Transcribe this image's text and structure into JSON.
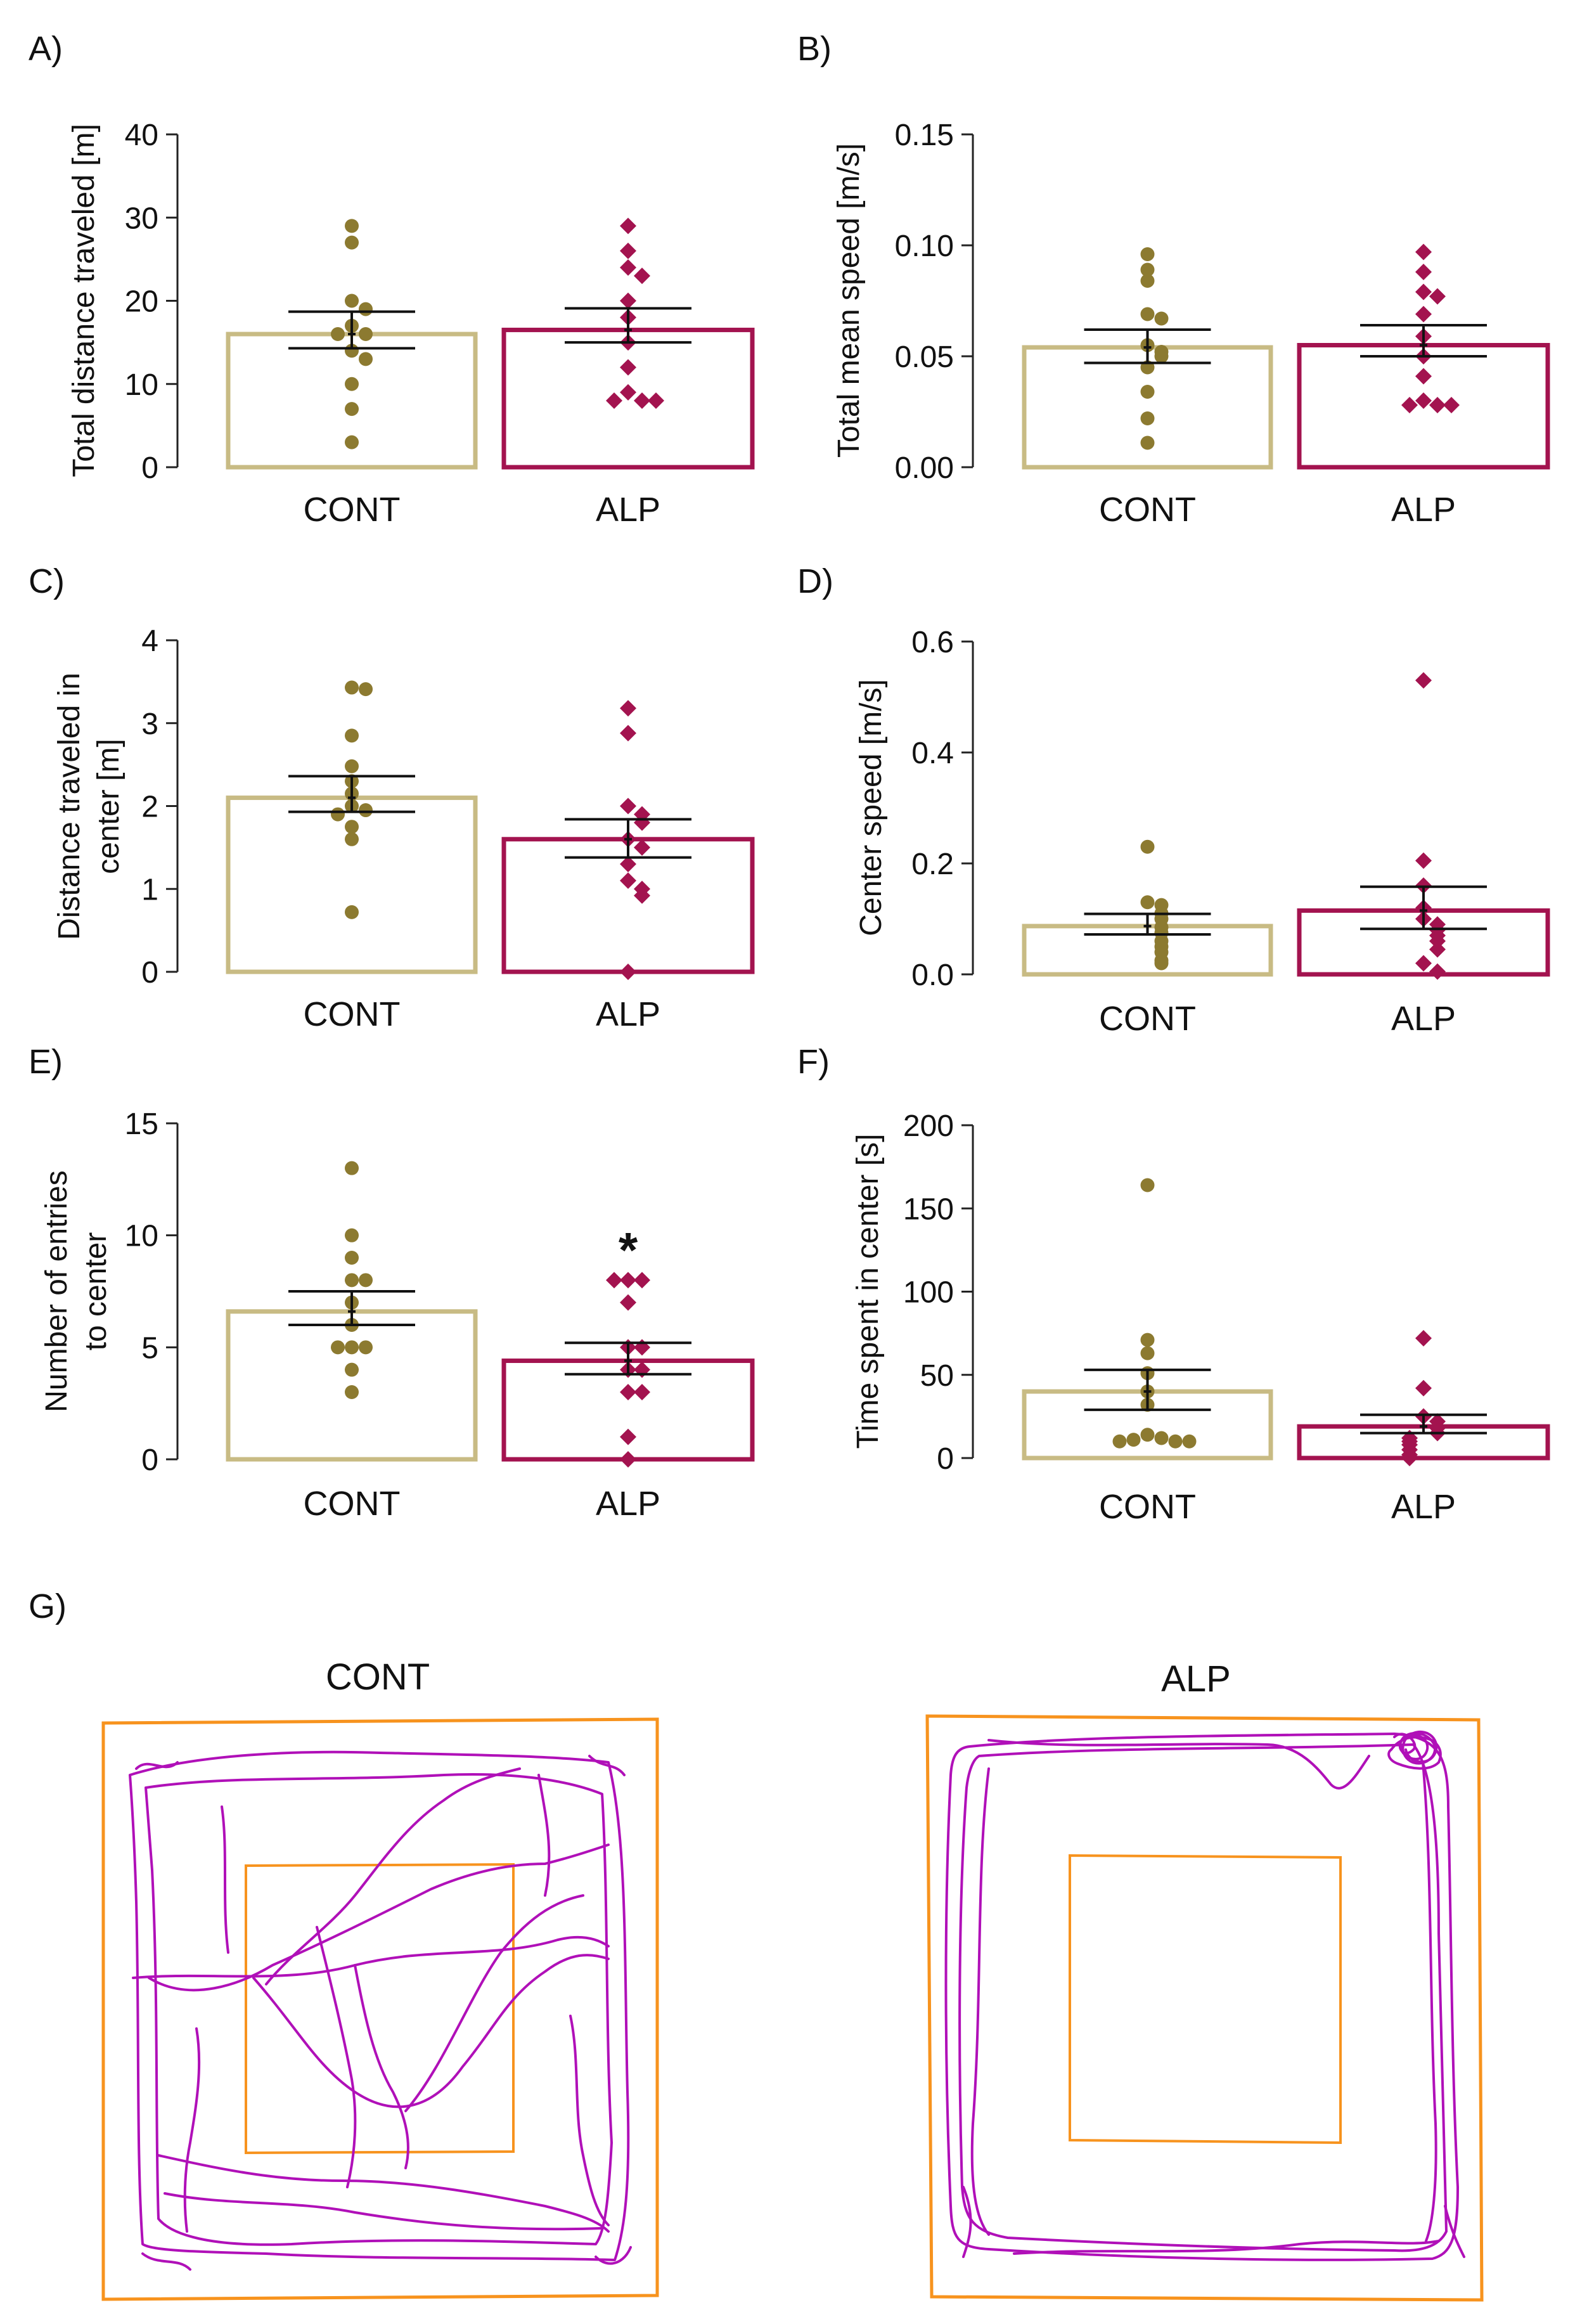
{
  "colors": {
    "cont_bar": "#c8bb84",
    "cont_dot": "#8c7a30",
    "alp_bar": "#a3134f",
    "alp_dot": "#a3134f",
    "arena": "#f7931e",
    "track": "#b010b8",
    "axis": "#222222"
  },
  "chart_data": [
    {
      "type": "bar",
      "panel_label": "A)",
      "ylabel_lines": [
        "Total distance traveled [m]"
      ],
      "categories": [
        "CONT",
        "ALP"
      ],
      "values": [
        16.0,
        16.5
      ],
      "sem": [
        [
          14.3,
          18.7
        ],
        [
          15.0,
          19.1
        ]
      ],
      "ylim": [
        0,
        40
      ],
      "yticks": [
        "0",
        "10",
        "20",
        "30",
        "40"
      ],
      "points": [
        [
          29,
          27,
          20,
          19,
          17,
          16,
          16,
          14,
          13,
          10,
          7,
          3
        ],
        [
          29,
          26,
          24,
          23,
          20,
          18,
          15,
          12,
          9,
          8,
          8,
          8
        ]
      ],
      "annotation": ""
    },
    {
      "type": "bar",
      "panel_label": "B)",
      "ylabel_lines": [
        "Total mean speed [m/s]"
      ],
      "categories": [
        "CONT",
        "ALP"
      ],
      "values": [
        0.054,
        0.055
      ],
      "sem": [
        [
          0.047,
          0.062
        ],
        [
          0.05,
          0.064
        ]
      ],
      "ylim": [
        0,
        0.15
      ],
      "yticks": [
        "0.00",
        "0.05",
        "0.10",
        "0.15"
      ],
      "points": [
        [
          0.096,
          0.089,
          0.084,
          0.069,
          0.067,
          0.055,
          0.052,
          0.05,
          0.045,
          0.034,
          0.022,
          0.011
        ],
        [
          0.097,
          0.088,
          0.079,
          0.077,
          0.069,
          0.059,
          0.05,
          0.041,
          0.03,
          0.028,
          0.028,
          0.028
        ]
      ],
      "annotation": ""
    },
    {
      "type": "bar",
      "panel_label": "C)",
      "ylabel_lines": [
        "Distance traveled in",
        "center [m]"
      ],
      "categories": [
        "CONT",
        "ALP"
      ],
      "values": [
        2.1,
        1.6
      ],
      "sem": [
        [
          1.93,
          2.36
        ],
        [
          1.38,
          1.84
        ]
      ],
      "ylim": [
        0,
        4
      ],
      "yticks": [
        "0",
        "1",
        "2",
        "3",
        "4"
      ],
      "points": [
        [
          3.43,
          3.41,
          2.85,
          2.48,
          2.3,
          2.15,
          2.0,
          1.95,
          1.9,
          1.75,
          1.6,
          0.72
        ],
        [
          3.18,
          2.88,
          2.0,
          1.9,
          1.8,
          1.6,
          1.5,
          1.3,
          1.1,
          1.0,
          0.92,
          0.0
        ]
      ],
      "annotation": ""
    },
    {
      "type": "bar",
      "panel_label": "D)",
      "ylabel_lines": [
        "Center speed [m/s]"
      ],
      "categories": [
        "CONT",
        "ALP"
      ],
      "values": [
        0.087,
        0.115
      ],
      "sem": [
        [
          0.072,
          0.109
        ],
        [
          0.082,
          0.158
        ]
      ],
      "ylim": [
        0,
        0.6
      ],
      "yticks": [
        "0.0",
        "0.2",
        "0.4",
        "0.6"
      ],
      "points": [
        [
          0.23,
          0.13,
          0.125,
          0.11,
          0.1,
          0.085,
          0.075,
          0.06,
          0.05,
          0.04,
          0.025,
          0.02
        ],
        [
          0.53,
          0.205,
          0.16,
          0.12,
          0.1,
          0.09,
          0.08,
          0.07,
          0.06,
          0.045,
          0.02,
          0.005
        ]
      ],
      "annotation": ""
    },
    {
      "type": "bar",
      "panel_label": "E)",
      "ylabel_lines": [
        "Number of entries",
        "to center"
      ],
      "categories": [
        "CONT",
        "ALP"
      ],
      "values": [
        6.6,
        4.4
      ],
      "sem": [
        [
          6.0,
          7.5
        ],
        [
          3.8,
          5.2
        ]
      ],
      "ylim": [
        0,
        15
      ],
      "yticks": [
        "0",
        "5",
        "10",
        "15"
      ],
      "points": [
        [
          13,
          10,
          9,
          8,
          8,
          7,
          6,
          5,
          5,
          5,
          4,
          3
        ],
        [
          8,
          8,
          8,
          7,
          5,
          5,
          4,
          4,
          3,
          3,
          1,
          0
        ]
      ],
      "annotation": "*"
    },
    {
      "type": "bar",
      "panel_label": "F)",
      "ylabel_lines": [
        "Time spent in center [s]"
      ],
      "categories": [
        "CONT",
        "ALP"
      ],
      "values": [
        40,
        19
      ],
      "sem": [
        [
          29,
          53
        ],
        [
          15,
          26
        ]
      ],
      "ylim": [
        0,
        200
      ],
      "yticks": [
        "0",
        "50",
        "100",
        "150",
        "200"
      ],
      "points": [
        [
          164,
          71,
          63,
          51,
          40,
          32,
          14,
          12,
          11,
          10,
          10,
          10
        ],
        [
          72,
          42,
          25,
          22,
          18,
          15,
          12,
          10,
          8,
          5,
          2,
          0
        ]
      ],
      "annotation": ""
    }
  ],
  "panel_g": {
    "label": "G)",
    "cont_title": "CONT",
    "alp_title": "ALP"
  }
}
